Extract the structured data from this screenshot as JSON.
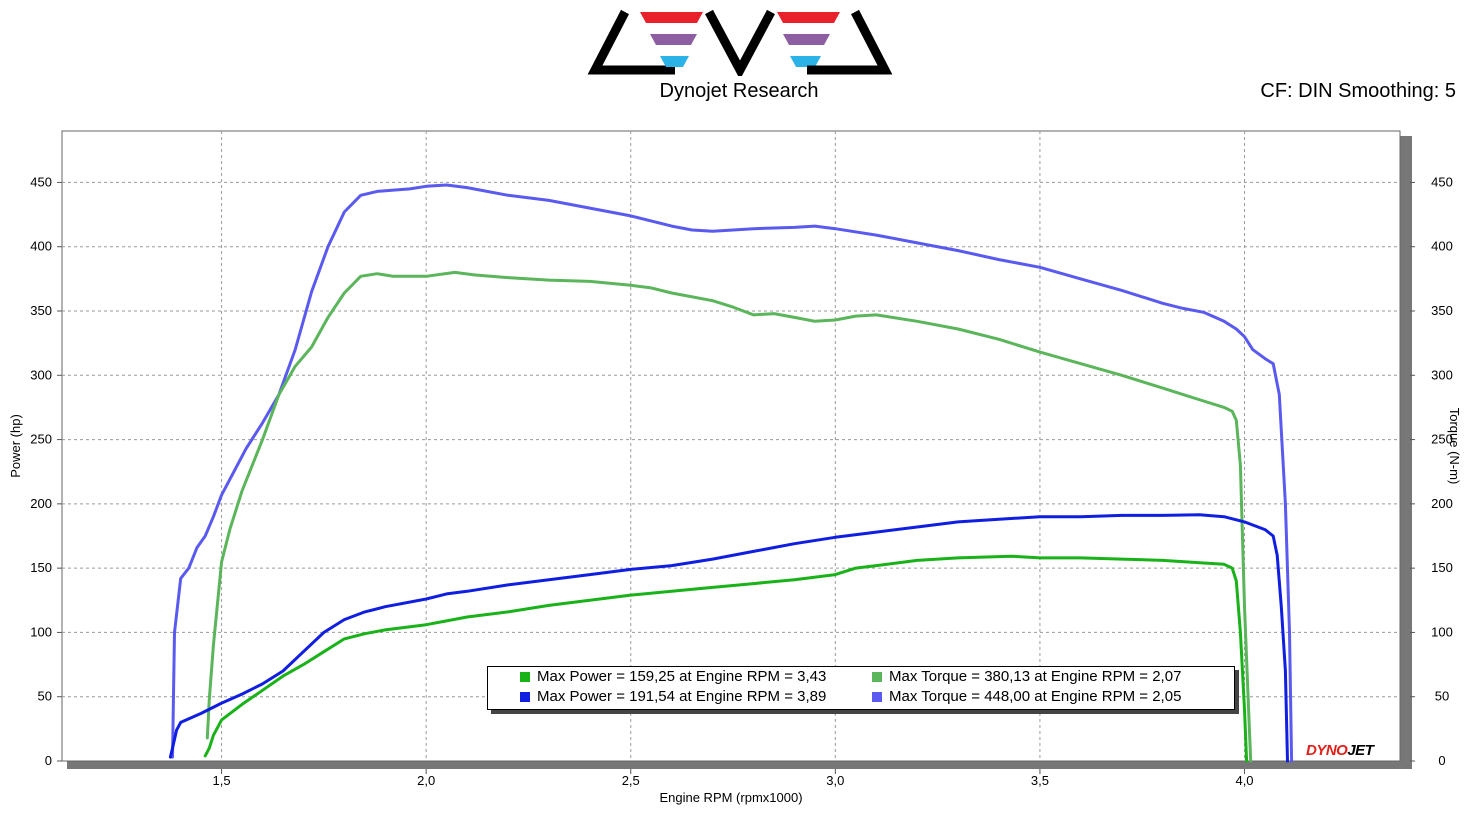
{
  "header": {
    "brand": "Dynojet Research",
    "settings": "CF: DIN Smoothing: 5",
    "logo_colors": [
      "#e8212b",
      "#8e5ea2",
      "#2bb3e8"
    ]
  },
  "watermark": {
    "text_a": "DYNO",
    "text_b": "JET"
  },
  "legend": {
    "items": [
      {
        "text": "Max Power = 159,25 at Engine RPM = 3,43",
        "color": "#19b219"
      },
      {
        "text": "Max Torque = 380,13 at Engine RPM = 2,07",
        "color": "#5bb55b"
      },
      {
        "text": "Max Power = 191,54 at Engine RPM = 3,89",
        "color": "#0f1ee0"
      },
      {
        "text": "Max Torque = 448,00 at Engine RPM = 2,05",
        "color": "#5a5af0"
      }
    ]
  },
  "chart_data": {
    "type": "line",
    "xlabel": "Engine RPM (rpmx1000)",
    "ylabel": "Power (hp)",
    "y2label": "Torque (N-m)",
    "xlim": [
      1.11,
      4.38
    ],
    "ylim": [
      0,
      490
    ],
    "x_ticks": [
      "1,5",
      "2,0",
      "2,5",
      "3,0",
      "3,5",
      "4,0"
    ],
    "x_tick_values": [
      1.5,
      2.0,
      2.5,
      3.0,
      3.5,
      4.0
    ],
    "y_ticks": [
      0,
      50,
      100,
      150,
      200,
      250,
      300,
      350,
      400,
      450
    ],
    "grid": true,
    "series": [
      {
        "name": "Max Torque = 448,00 at Engine RPM = 2,05",
        "axis": "right",
        "color": "#5a5af0",
        "points": [
          [
            1.38,
            3
          ],
          [
            1.385,
            100
          ],
          [
            1.4,
            142
          ],
          [
            1.42,
            150
          ],
          [
            1.44,
            166
          ],
          [
            1.46,
            175
          ],
          [
            1.48,
            190
          ],
          [
            1.5,
            207
          ],
          [
            1.53,
            225
          ],
          [
            1.56,
            243
          ],
          [
            1.6,
            263
          ],
          [
            1.64,
            285
          ],
          [
            1.68,
            320
          ],
          [
            1.72,
            365
          ],
          [
            1.76,
            400
          ],
          [
            1.8,
            427
          ],
          [
            1.84,
            440
          ],
          [
            1.88,
            443
          ],
          [
            1.92,
            444
          ],
          [
            1.96,
            445
          ],
          [
            2.0,
            447
          ],
          [
            2.05,
            448
          ],
          [
            2.1,
            446
          ],
          [
            2.2,
            440
          ],
          [
            2.3,
            436
          ],
          [
            2.4,
            430
          ],
          [
            2.5,
            424
          ],
          [
            2.6,
            416
          ],
          [
            2.65,
            413
          ],
          [
            2.7,
            412
          ],
          [
            2.8,
            414
          ],
          [
            2.9,
            415
          ],
          [
            2.95,
            416
          ],
          [
            3.0,
            414
          ],
          [
            3.1,
            409
          ],
          [
            3.2,
            403
          ],
          [
            3.3,
            397
          ],
          [
            3.4,
            390
          ],
          [
            3.5,
            384
          ],
          [
            3.6,
            375
          ],
          [
            3.7,
            366
          ],
          [
            3.8,
            356
          ],
          [
            3.85,
            352
          ],
          [
            3.9,
            349
          ],
          [
            3.95,
            342
          ],
          [
            3.98,
            336
          ],
          [
            4.0,
            330
          ],
          [
            4.02,
            320
          ],
          [
            4.05,
            313
          ],
          [
            4.07,
            309
          ],
          [
            4.085,
            285
          ],
          [
            4.1,
            200
          ],
          [
            4.11,
            100
          ],
          [
            4.115,
            0
          ]
        ]
      },
      {
        "name": "Max Torque = 380,13 at Engine RPM = 2,07",
        "axis": "right",
        "color": "#5bb55b",
        "points": [
          [
            1.465,
            18
          ],
          [
            1.47,
            48
          ],
          [
            1.48,
            90
          ],
          [
            1.5,
            155
          ],
          [
            1.52,
            180
          ],
          [
            1.55,
            210
          ],
          [
            1.6,
            250
          ],
          [
            1.64,
            285
          ],
          [
            1.68,
            307
          ],
          [
            1.72,
            322
          ],
          [
            1.76,
            345
          ],
          [
            1.8,
            364
          ],
          [
            1.84,
            377
          ],
          [
            1.88,
            379
          ],
          [
            1.92,
            377
          ],
          [
            2.0,
            377
          ],
          [
            2.07,
            380
          ],
          [
            2.12,
            378
          ],
          [
            2.2,
            376
          ],
          [
            2.3,
            374
          ],
          [
            2.4,
            373
          ],
          [
            2.5,
            370
          ],
          [
            2.55,
            368
          ],
          [
            2.6,
            364
          ],
          [
            2.7,
            358
          ],
          [
            2.75,
            353
          ],
          [
            2.8,
            347
          ],
          [
            2.85,
            348
          ],
          [
            2.9,
            345
          ],
          [
            2.95,
            342
          ],
          [
            3.0,
            343
          ],
          [
            3.05,
            346
          ],
          [
            3.1,
            347
          ],
          [
            3.2,
            342
          ],
          [
            3.3,
            336
          ],
          [
            3.4,
            328
          ],
          [
            3.5,
            318
          ],
          [
            3.6,
            309
          ],
          [
            3.7,
            300
          ],
          [
            3.8,
            290
          ],
          [
            3.85,
            285
          ],
          [
            3.9,
            280
          ],
          [
            3.95,
            275
          ],
          [
            3.97,
            272
          ],
          [
            3.98,
            265
          ],
          [
            3.99,
            230
          ],
          [
            4.0,
            120
          ],
          [
            4.01,
            40
          ],
          [
            4.015,
            0
          ]
        ]
      },
      {
        "name": "Max Power = 191,54 at Engine RPM = 3,89",
        "axis": "left",
        "color": "#0f1ee0",
        "points": [
          [
            1.375,
            3
          ],
          [
            1.38,
            10
          ],
          [
            1.39,
            24
          ],
          [
            1.4,
            30
          ],
          [
            1.45,
            37
          ],
          [
            1.5,
            45
          ],
          [
            1.55,
            52
          ],
          [
            1.6,
            60
          ],
          [
            1.65,
            70
          ],
          [
            1.7,
            85
          ],
          [
            1.75,
            100
          ],
          [
            1.8,
            110
          ],
          [
            1.85,
            116
          ],
          [
            1.9,
            120
          ],
          [
            2.0,
            126
          ],
          [
            2.05,
            130
          ],
          [
            2.1,
            132
          ],
          [
            2.2,
            137
          ],
          [
            2.3,
            141
          ],
          [
            2.4,
            145
          ],
          [
            2.5,
            149
          ],
          [
            2.6,
            152
          ],
          [
            2.7,
            157
          ],
          [
            2.8,
            163
          ],
          [
            2.9,
            169
          ],
          [
            3.0,
            174
          ],
          [
            3.1,
            178
          ],
          [
            3.2,
            182
          ],
          [
            3.3,
            186
          ],
          [
            3.4,
            188
          ],
          [
            3.5,
            190
          ],
          [
            3.6,
            190
          ],
          [
            3.7,
            191
          ],
          [
            3.8,
            191
          ],
          [
            3.89,
            191.5
          ],
          [
            3.95,
            190
          ],
          [
            4.0,
            186
          ],
          [
            4.05,
            180
          ],
          [
            4.07,
            175
          ],
          [
            4.08,
            160
          ],
          [
            4.09,
            120
          ],
          [
            4.1,
            70
          ],
          [
            4.105,
            0
          ]
        ]
      },
      {
        "name": "Max Power = 159,25 at Engine RPM = 3,43",
        "axis": "left",
        "color": "#19b219",
        "points": [
          [
            1.46,
            4
          ],
          [
            1.47,
            10
          ],
          [
            1.48,
            20
          ],
          [
            1.5,
            32
          ],
          [
            1.55,
            44
          ],
          [
            1.6,
            55
          ],
          [
            1.65,
            66
          ],
          [
            1.7,
            75
          ],
          [
            1.75,
            85
          ],
          [
            1.8,
            95
          ],
          [
            1.85,
            99
          ],
          [
            1.9,
            102
          ],
          [
            2.0,
            106
          ],
          [
            2.05,
            109
          ],
          [
            2.1,
            112
          ],
          [
            2.2,
            116
          ],
          [
            2.3,
            121
          ],
          [
            2.4,
            125
          ],
          [
            2.5,
            129
          ],
          [
            2.6,
            132
          ],
          [
            2.7,
            135
          ],
          [
            2.8,
            138
          ],
          [
            2.9,
            141
          ],
          [
            3.0,
            145
          ],
          [
            3.05,
            150
          ],
          [
            3.1,
            152
          ],
          [
            3.2,
            156
          ],
          [
            3.3,
            158
          ],
          [
            3.43,
            159.3
          ],
          [
            3.5,
            158
          ],
          [
            3.6,
            158
          ],
          [
            3.7,
            157
          ],
          [
            3.8,
            156
          ],
          [
            3.9,
            154
          ],
          [
            3.95,
            153
          ],
          [
            3.97,
            150
          ],
          [
            3.98,
            140
          ],
          [
            3.99,
            100
          ],
          [
            4.0,
            40
          ],
          [
            4.005,
            0
          ]
        ]
      }
    ]
  }
}
